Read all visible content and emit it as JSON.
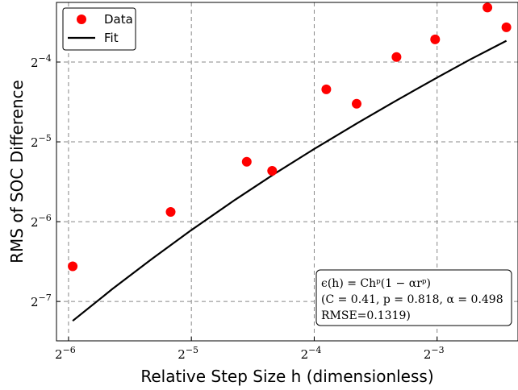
{
  "chart_data": {
    "type": "scatter",
    "title": "",
    "xlabel": "Relative Step Size h (dimensionless)",
    "ylabel": "RMS of SOC Difference",
    "x_scale": "log2",
    "y_scale": "log2",
    "xlim": [
      0.0146,
      0.1973
    ],
    "ylim": [
      0.00555,
      0.1049
    ],
    "x_ticks": [
      {
        "value": 0.015625,
        "base": "2",
        "exp": "−6"
      },
      {
        "value": 0.03125,
        "base": "2",
        "exp": "−5"
      },
      {
        "value": 0.0625,
        "base": "2",
        "exp": "−4"
      },
      {
        "value": 0.125,
        "base": "2",
        "exp": "−3"
      }
    ],
    "y_ticks": [
      {
        "value": 0.0078125,
        "base": "2",
        "exp": "−7"
      },
      {
        "value": 0.015625,
        "base": "2",
        "exp": "−6"
      },
      {
        "value": 0.03125,
        "base": "2",
        "exp": "−5"
      },
      {
        "value": 0.0625,
        "base": "2",
        "exp": "−4"
      }
    ],
    "grid": true,
    "legend": {
      "placement": "top-left",
      "entries": [
        "Data",
        "Fit"
      ]
    },
    "series": [
      {
        "name": "Data",
        "kind": "scatter",
        "color": "#ff0000",
        "x": [
          0.016,
          0.0278,
          0.0427,
          0.0493,
          0.0669,
          0.0794,
          0.0994,
          0.1236,
          0.166,
          0.1848
        ],
        "y": [
          0.0106,
          0.017,
          0.0263,
          0.0243,
          0.0493,
          0.0435,
          0.0653,
          0.0761,
          0.1003,
          0.0845
        ]
      },
      {
        "name": "Fit",
        "kind": "line",
        "color": "#000000",
        "x": [
          0.016,
          0.02,
          0.025,
          0.0312,
          0.04,
          0.05,
          0.0625,
          0.08,
          0.1,
          0.125,
          0.15,
          0.1848
        ],
        "y": [
          0.0066,
          0.0087,
          0.0113,
          0.0145,
          0.0189,
          0.0237,
          0.0294,
          0.0369,
          0.045,
          0.0546,
          0.0637,
          0.0752
        ]
      }
    ],
    "annotation": {
      "lines": [
        "ϵ(h) = Chᵖ(1 − αrᵖ)",
        "(C = 0.41, p = 0.818, α = 0.498",
        "RMSE=0.1319)"
      ]
    }
  }
}
